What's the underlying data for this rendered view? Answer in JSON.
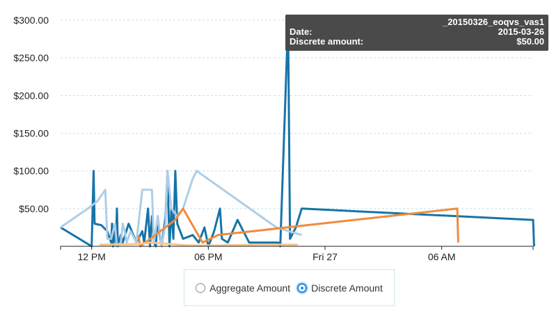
{
  "chart_data": {
    "type": "line",
    "y_ticks": [
      "$50.00",
      "$100.00",
      "$150.00",
      "$200.00",
      "$250.00",
      "$300.00"
    ],
    "y_tick_values": [
      50,
      100,
      150,
      200,
      250,
      300
    ],
    "ylim": [
      0,
      300
    ],
    "x_ticks": [
      "12 PM",
      "06 PM",
      "Fri 27",
      "06 AM"
    ],
    "x_tick_values": [
      12,
      18,
      24,
      30
    ],
    "xlim": [
      10.4,
      34.7
    ],
    "grid": true,
    "series": [
      {
        "color": "#1574a8",
        "points": [
          [
            10.4,
            25
          ],
          [
            12.0,
            0
          ],
          [
            12.1,
            100
          ],
          [
            12.15,
            30
          ],
          [
            12.5,
            28
          ],
          [
            12.8,
            20
          ],
          [
            13.0,
            5
          ],
          [
            13.05,
            30
          ],
          [
            13.1,
            0
          ],
          [
            13.2,
            20
          ],
          [
            13.25,
            5
          ],
          [
            13.3,
            50
          ],
          [
            13.35,
            0
          ],
          [
            13.5,
            15
          ],
          [
            13.6,
            5
          ],
          [
            13.9,
            30
          ],
          [
            14.3,
            5
          ],
          [
            14.6,
            20
          ],
          [
            14.7,
            5
          ],
          [
            14.9,
            50
          ],
          [
            15.0,
            0
          ],
          [
            15.1,
            40
          ],
          [
            15.2,
            5
          ],
          [
            15.3,
            0
          ],
          [
            15.4,
            40
          ],
          [
            15.5,
            15
          ],
          [
            15.6,
            0
          ],
          [
            15.8,
            40
          ],
          [
            15.9,
            100
          ],
          [
            16.0,
            0
          ],
          [
            16.1,
            50
          ],
          [
            16.2,
            10
          ],
          [
            16.3,
            100
          ],
          [
            16.4,
            30
          ],
          [
            16.7,
            10
          ],
          [
            17.2,
            15
          ],
          [
            17.5,
            5
          ],
          [
            17.8,
            25
          ],
          [
            18.0,
            0
          ],
          [
            18.3,
            20
          ],
          [
            18.6,
            50
          ],
          [
            18.7,
            10
          ],
          [
            19.0,
            5
          ],
          [
            19.5,
            35
          ],
          [
            20.1,
            5
          ],
          [
            21.6,
            5
          ],
          [
            21.7,
            0
          ],
          [
            22.1,
            300
          ],
          [
            22.2,
            10
          ],
          [
            22.5,
            25
          ],
          [
            22.8,
            50
          ],
          [
            34.7,
            35
          ],
          [
            34.75,
            0
          ]
        ]
      },
      {
        "color": "#aecde8",
        "points": [
          [
            10.4,
            25
          ],
          [
            11.8,
            50
          ],
          [
            12.3,
            60
          ],
          [
            12.7,
            75
          ],
          [
            12.8,
            10
          ],
          [
            13.0,
            10
          ],
          [
            13.2,
            30
          ],
          [
            13.3,
            0
          ],
          [
            13.5,
            5
          ],
          [
            13.6,
            30
          ],
          [
            13.7,
            20
          ],
          [
            13.8,
            5
          ],
          [
            14.0,
            20
          ],
          [
            14.3,
            5
          ],
          [
            14.6,
            75
          ],
          [
            15.1,
            75
          ],
          [
            15.2,
            5
          ],
          [
            15.4,
            40
          ],
          [
            15.6,
            0
          ],
          [
            15.8,
            30
          ],
          [
            15.9,
            100
          ],
          [
            16.1,
            50
          ],
          [
            16.4,
            40
          ],
          [
            16.7,
            50
          ],
          [
            17.2,
            90
          ],
          [
            17.4,
            100
          ],
          [
            21.5,
            25
          ],
          [
            22.8,
            15
          ]
        ]
      },
      {
        "color": "#f08a3c",
        "points": [
          [
            14.4,
            15
          ],
          [
            14.5,
            0
          ],
          [
            16.3,
            35
          ],
          [
            16.7,
            50
          ],
          [
            17.7,
            5
          ],
          [
            18.5,
            15
          ],
          [
            30.8,
            50
          ],
          [
            30.85,
            5
          ]
        ]
      },
      {
        "color": "#f8c48a",
        "points": [
          [
            12.4,
            2
          ],
          [
            14.4,
            3
          ],
          [
            15.0,
            5
          ],
          [
            17.0,
            1
          ],
          [
            18.5,
            1
          ],
          [
            20.5,
            2
          ],
          [
            22.6,
            2
          ]
        ]
      }
    ]
  },
  "tooltip": {
    "title": "_20150326_eoqvs_vas1",
    "date_label": "Date:",
    "date_value": "2015-03-26",
    "amount_label": "Discrete amount:",
    "amount_value": "$50.00"
  },
  "toggle": {
    "aggregate_label": "Aggregate Amount",
    "discrete_label": "Discrete Amount",
    "selected": "discrete"
  }
}
